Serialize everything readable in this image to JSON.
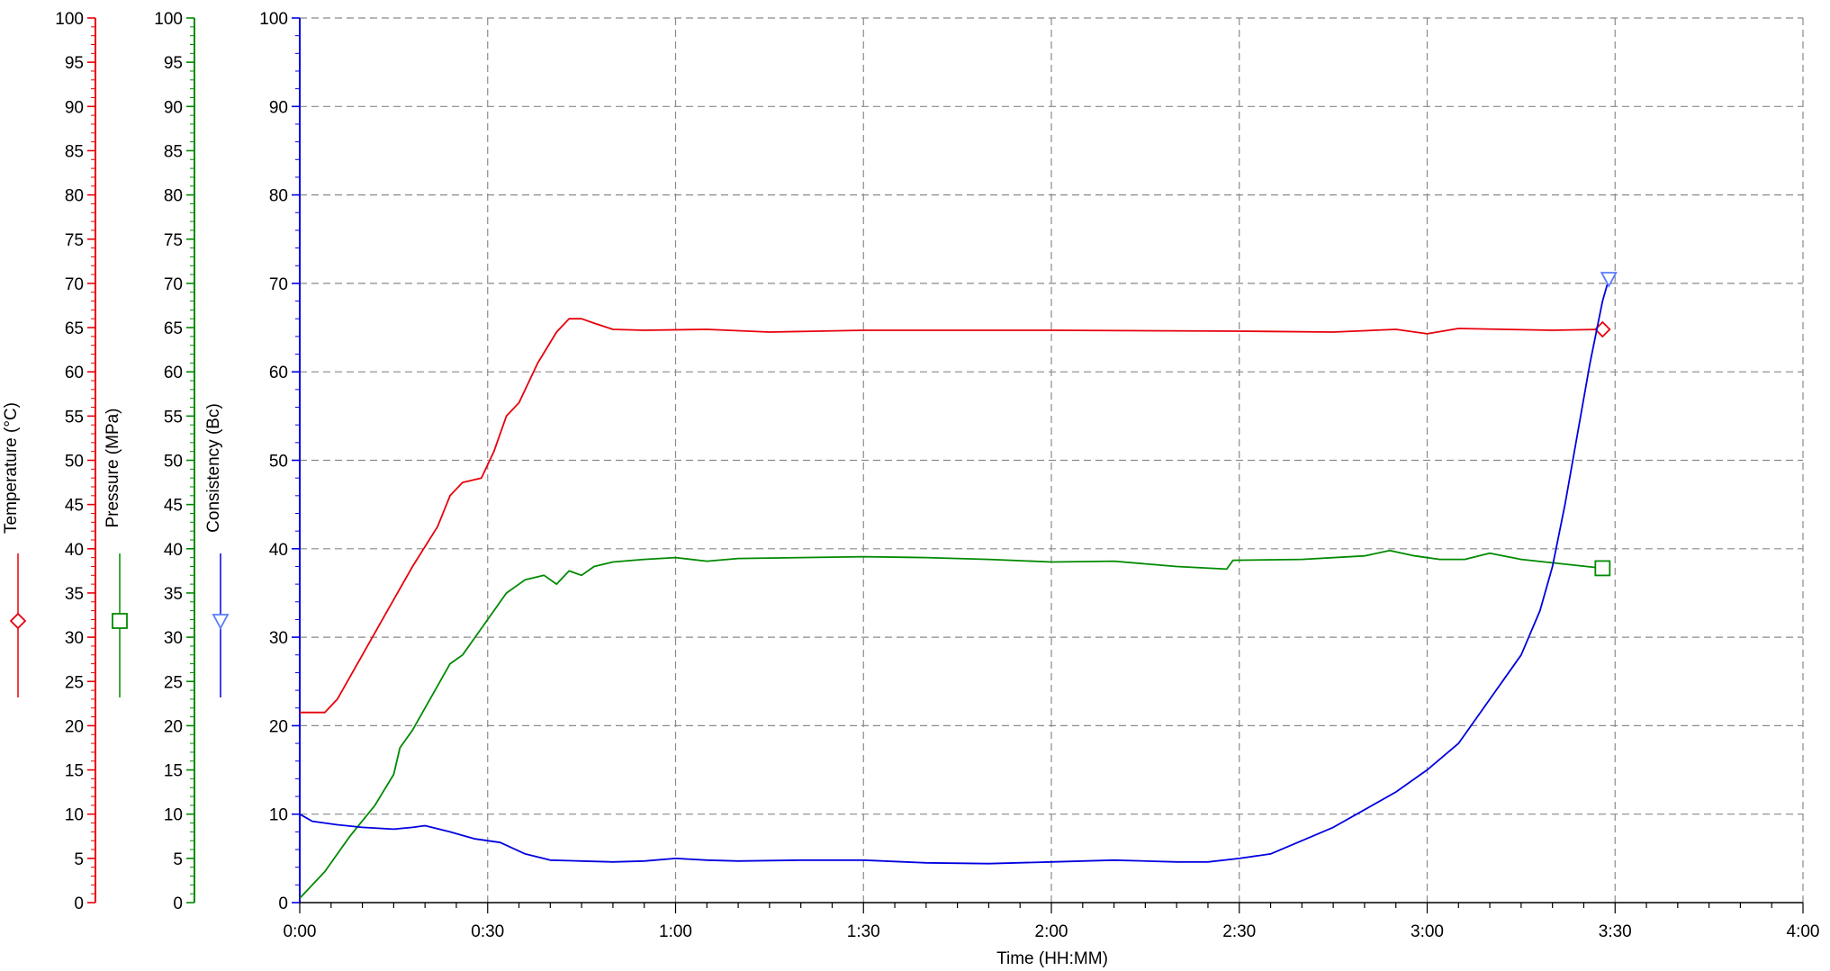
{
  "chart_data": {
    "type": "line",
    "xlabel": "Time (HH:MM)",
    "x_unit": "minutes",
    "xlim": [
      0,
      240
    ],
    "x_ticks": [
      {
        "value": 0,
        "label": "0:00"
      },
      {
        "value": 30,
        "label": "0:30"
      },
      {
        "value": 60,
        "label": "1:00"
      },
      {
        "value": 90,
        "label": "1:30"
      },
      {
        "value": 120,
        "label": "2:00"
      },
      {
        "value": 150,
        "label": "2:30"
      },
      {
        "value": 180,
        "label": "3:00"
      },
      {
        "value": 210,
        "label": "3:30"
      },
      {
        "value": 240,
        "label": "4:00"
      }
    ],
    "grid": true,
    "axes": [
      {
        "id": "temperature",
        "label": "Temperature (°C)",
        "color": "#e8000b",
        "ylim": [
          0,
          100
        ],
        "tick_step": 5,
        "marker": "diamond"
      },
      {
        "id": "pressure",
        "label": "Pressure (MPa)",
        "color": "#008a00",
        "ylim": [
          0,
          100
        ],
        "tick_step": 5,
        "marker": "square"
      },
      {
        "id": "consistency",
        "label": "Consistency (Bc)",
        "color": "#0000e0",
        "ylim": [
          0,
          100
        ],
        "tick_step": 10,
        "marker": "triangle-down"
      }
    ],
    "series": [
      {
        "name": "Temperature (°C)",
        "axis": "temperature",
        "color": "#e8000b",
        "end_marker": "diamond",
        "points": [
          [
            0,
            21.5
          ],
          [
            4,
            21.5
          ],
          [
            6,
            23
          ],
          [
            10,
            28
          ],
          [
            14,
            33
          ],
          [
            18,
            38
          ],
          [
            22,
            42.5
          ],
          [
            24,
            46
          ],
          [
            26,
            47.5
          ],
          [
            29,
            48
          ],
          [
            31,
            51
          ],
          [
            33,
            55
          ],
          [
            35,
            56.5
          ],
          [
            38,
            61
          ],
          [
            41,
            64.5
          ],
          [
            43,
            66
          ],
          [
            45,
            66
          ],
          [
            47,
            65.5
          ],
          [
            50,
            64.8
          ],
          [
            55,
            64.7
          ],
          [
            65,
            64.8
          ],
          [
            75,
            64.5
          ],
          [
            90,
            64.7
          ],
          [
            120,
            64.7
          ],
          [
            150,
            64.6
          ],
          [
            165,
            64.5
          ],
          [
            175,
            64.8
          ],
          [
            180,
            64.3
          ],
          [
            185,
            64.9
          ],
          [
            200,
            64.7
          ],
          [
            208,
            64.8
          ]
        ]
      },
      {
        "name": "Pressure (MPa)",
        "axis": "pressure",
        "color": "#008a00",
        "end_marker": "square",
        "points": [
          [
            0,
            0.5
          ],
          [
            4,
            3.5
          ],
          [
            8,
            7.5
          ],
          [
            12,
            11
          ],
          [
            15,
            14.5
          ],
          [
            16,
            17.5
          ],
          [
            18,
            19.5
          ],
          [
            20,
            22
          ],
          [
            22,
            24.5
          ],
          [
            24,
            27
          ],
          [
            26,
            28
          ],
          [
            28,
            30
          ],
          [
            30,
            32
          ],
          [
            33,
            35
          ],
          [
            36,
            36.5
          ],
          [
            39,
            37
          ],
          [
            41,
            36
          ],
          [
            43,
            37.5
          ],
          [
            45,
            37
          ],
          [
            47,
            38
          ],
          [
            50,
            38.5
          ],
          [
            55,
            38.8
          ],
          [
            60,
            39
          ],
          [
            65,
            38.6
          ],
          [
            70,
            38.9
          ],
          [
            80,
            39
          ],
          [
            90,
            39.1
          ],
          [
            100,
            39
          ],
          [
            110,
            38.8
          ],
          [
            120,
            38.5
          ],
          [
            130,
            38.6
          ],
          [
            140,
            38
          ],
          [
            148,
            37.7
          ],
          [
            149,
            38.7
          ],
          [
            160,
            38.8
          ],
          [
            170,
            39.2
          ],
          [
            174,
            39.8
          ],
          [
            178,
            39.2
          ],
          [
            182,
            38.8
          ],
          [
            186,
            38.8
          ],
          [
            190,
            39.5
          ],
          [
            195,
            38.8
          ],
          [
            208,
            37.8
          ]
        ]
      },
      {
        "name": "Consistency (Bc)",
        "axis": "consistency",
        "color": "#0000e0",
        "end_marker": "triangle-down",
        "points": [
          [
            0,
            10
          ],
          [
            2,
            9.2
          ],
          [
            6,
            8.8
          ],
          [
            10,
            8.5
          ],
          [
            15,
            8.3
          ],
          [
            18,
            8.5
          ],
          [
            20,
            8.7
          ],
          [
            24,
            8
          ],
          [
            28,
            7.2
          ],
          [
            32,
            6.8
          ],
          [
            36,
            5.5
          ],
          [
            40,
            4.8
          ],
          [
            45,
            4.7
          ],
          [
            50,
            4.6
          ],
          [
            55,
            4.7
          ],
          [
            60,
            5
          ],
          [
            65,
            4.8
          ],
          [
            70,
            4.7
          ],
          [
            80,
            4.8
          ],
          [
            90,
            4.8
          ],
          [
            100,
            4.5
          ],
          [
            110,
            4.4
          ],
          [
            120,
            4.6
          ],
          [
            130,
            4.8
          ],
          [
            140,
            4.6
          ],
          [
            145,
            4.6
          ],
          [
            150,
            5
          ],
          [
            155,
            5.5
          ],
          [
            160,
            7
          ],
          [
            165,
            8.5
          ],
          [
            170,
            10.5
          ],
          [
            175,
            12.5
          ],
          [
            180,
            15
          ],
          [
            185,
            18
          ],
          [
            188,
            21
          ],
          [
            192,
            25
          ],
          [
            195,
            28
          ],
          [
            198,
            33
          ],
          [
            200,
            38
          ],
          [
            202,
            45
          ],
          [
            204,
            53
          ],
          [
            206,
            61
          ],
          [
            208,
            68
          ],
          [
            209,
            70.5
          ]
        ]
      }
    ]
  }
}
